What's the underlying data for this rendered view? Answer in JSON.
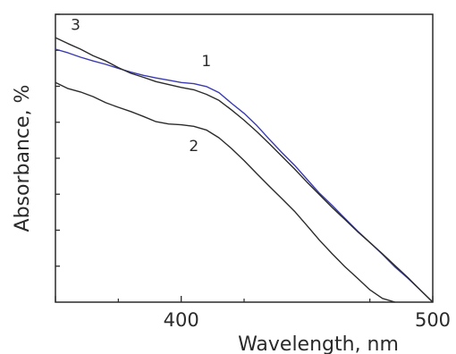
{
  "chart_data": {
    "type": "line",
    "title": "",
    "xlabel": "Wavelength, nm",
    "ylabel": "Absorbance, %",
    "xlim": [
      350,
      500
    ],
    "ylim": [
      0,
      100
    ],
    "xticks": [
      400,
      500
    ],
    "yticks_minor": [
      12.5,
      25,
      37.5,
      50,
      62.5,
      75,
      87.5,
      100
    ],
    "grid": false,
    "legend": "none",
    "series": [
      {
        "name": "1",
        "color": "#3a3ab0",
        "x": [
          350,
          355,
          360,
          365,
          370,
          375,
          380,
          385,
          390,
          395,
          400,
          405,
          410,
          415,
          420,
          425,
          430,
          435,
          440,
          445,
          450,
          455,
          460,
          465,
          470,
          475,
          480,
          485,
          490,
          495,
          500
        ],
        "y": [
          87.9,
          86.6,
          85.1,
          83.8,
          82.6,
          81.2,
          79.9,
          78.8,
          77.9,
          77.1,
          76.3,
          75.9,
          74.9,
          72.8,
          69.1,
          65.6,
          61.4,
          56.6,
          52.0,
          47.6,
          42.7,
          37.8,
          33.6,
          29.2,
          24.8,
          20.7,
          16.6,
          12.2,
          8.4,
          4.3,
          0.0
        ]
      },
      {
        "name": "2",
        "color": "#2b2b2b",
        "x": [
          350,
          355,
          360,
          365,
          370,
          375,
          380,
          385,
          390,
          395,
          400,
          405,
          410,
          415,
          420,
          425,
          430,
          435,
          440,
          445,
          450,
          455,
          460,
          465,
          470,
          475,
          480,
          485
        ],
        "y": [
          76.3,
          74.2,
          73.0,
          71.4,
          69.3,
          67.7,
          66.2,
          64.5,
          62.7,
          61.9,
          61.6,
          61.1,
          59.8,
          57.1,
          53.4,
          49.2,
          44.7,
          40.3,
          36.0,
          31.6,
          26.6,
          21.5,
          16.8,
          12.4,
          8.4,
          4.3,
          1.3,
          0.0
        ]
      },
      {
        "name": "3",
        "color": "#2b2b2b",
        "x": [
          350,
          355,
          360,
          365,
          370,
          375,
          380,
          385,
          390,
          395,
          400,
          405,
          410,
          415,
          420,
          425,
          430,
          435,
          440,
          445,
          450,
          455,
          460,
          465,
          470,
          475,
          480,
          485,
          490,
          495,
          500
        ],
        "y": [
          91.9,
          89.8,
          87.9,
          85.6,
          83.8,
          81.5,
          79.5,
          78.1,
          76.6,
          75.6,
          74.6,
          73.8,
          72.2,
          70.1,
          66.8,
          63.2,
          59.3,
          55.1,
          50.7,
          46.3,
          41.7,
          37.3,
          32.9,
          28.8,
          24.6,
          20.7,
          16.8,
          12.7,
          8.6,
          4.3,
          0.0
        ]
      }
    ]
  }
}
